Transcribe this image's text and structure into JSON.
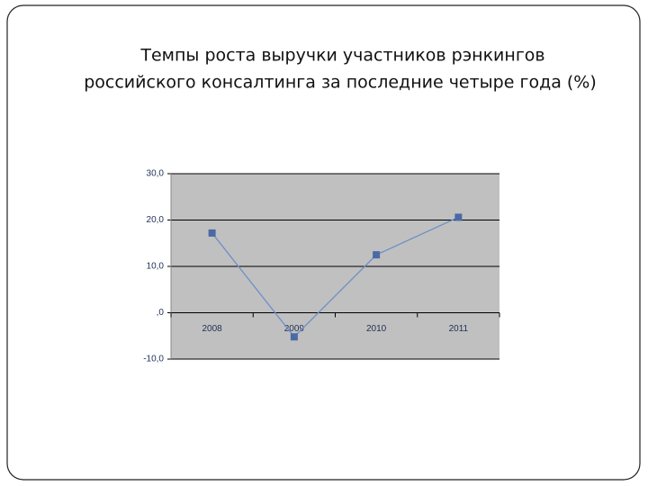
{
  "chart_data": {
    "type": "line",
    "title": [
      "Темпы роста выручки участников рэнкингов",
      "российского консалтинга за последние четыре года (%)"
    ],
    "categories": [
      "2008",
      "2009",
      "2010",
      "2011"
    ],
    "series": [
      {
        "name": "Темпы роста",
        "color": "#6f8fc7",
        "marker_color": "#4a6aa5",
        "values": [
          17.2,
          -5.2,
          12.5,
          20.6
        ]
      }
    ],
    "ylim": [
      -10,
      30
    ],
    "yticks": [
      {
        "value": -10,
        "label": "-10,0"
      },
      {
        "value": 0,
        "label": ",0"
      },
      {
        "value": 10,
        "label": "10,0"
      },
      {
        "value": 20,
        "label": "20,0"
      },
      {
        "value": 30,
        "label": "30,0"
      }
    ],
    "grid": true,
    "legend": false
  }
}
